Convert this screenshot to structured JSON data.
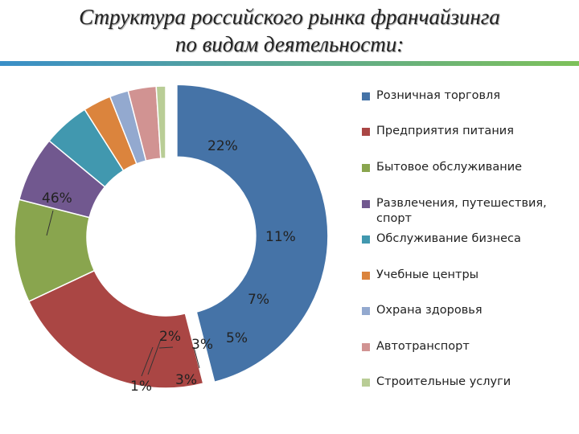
{
  "title": {
    "line1": "Структура российского рынка франчайзинга",
    "line2": "по видам деятельности:"
  },
  "colors": {
    "accent_gradient": [
      "#3a8fc8",
      "#7ec15a"
    ]
  },
  "chart_data": {
    "type": "pie",
    "variant": "doughnut",
    "title": "Структура российского рынка франчайзинга по видам деятельности:",
    "legend_position": "right",
    "series": [
      {
        "categories": [
          "Розничная торговля",
          "Предприятия питания",
          "Бытовое обслуживание",
          "Развлечения, путешествия, спорт",
          "Обслуживание бизнеса",
          "Учебные центры",
          "Охрана здоровья",
          "Автотранспорт",
          "Строительные услуги"
        ],
        "values": [
          46,
          22,
          11,
          7,
          5,
          3,
          2,
          3,
          1
        ],
        "labels": [
          "46%",
          "22%",
          "11%",
          "7%",
          "5%",
          "3%",
          "2%",
          "3%",
          "1%"
        ],
        "colors": [
          "#4573a7",
          "#aa4644",
          "#89a54e",
          "#71588f",
          "#4198af",
          "#db843d",
          "#93a9cf",
          "#d19392",
          "#b9cd96"
        ]
      }
    ]
  }
}
